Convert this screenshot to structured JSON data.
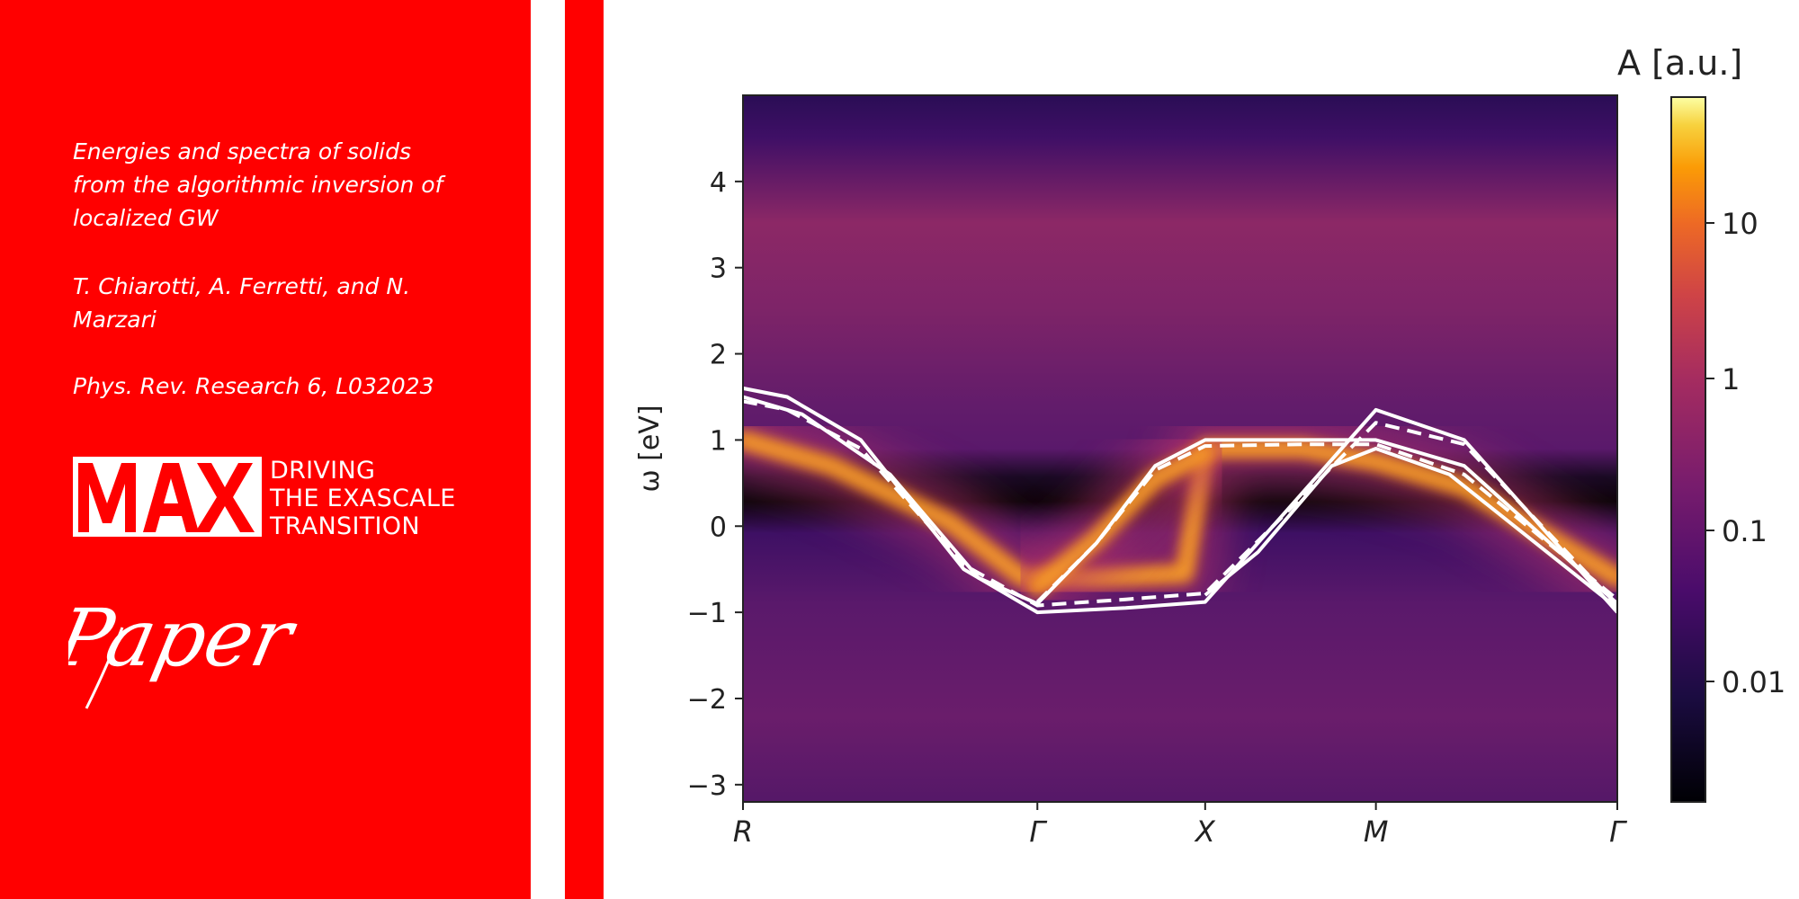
{
  "paper": {
    "title": "Energies and spectra of solids from the algorithmic inversion of localized GW",
    "authors": "T. Chiarotti, A. Ferretti, and N. Marzari",
    "journal": "Phys. Rev. Research 6, L032023"
  },
  "brand": {
    "logo_text": "MAX",
    "tagline_lines": [
      "DRIVING",
      "THE EXASCALE",
      "TRANSITION"
    ],
    "red": "#ff0000"
  },
  "tag_label": "Paper",
  "figure": {
    "ylabel": "ω [eV]",
    "colorbar_label": "A [a.u.]"
  },
  "chart_data": {
    "type": "heatmap",
    "title": "",
    "xlabel": "",
    "ylabel": "ω [eV]",
    "x_ticks": [
      {
        "label": "R",
        "pos": 0.0
      },
      {
        "label": "Γ",
        "pos": 1.0
      },
      {
        "label": "X",
        "pos": 1.57
      },
      {
        "label": "M",
        "pos": 2.15
      },
      {
        "label": "Γ",
        "pos": 2.97
      }
    ],
    "xlim": [
      0.0,
      2.97
    ],
    "y_ticks": [
      -3,
      -2,
      -1,
      0,
      1,
      2,
      3,
      4
    ],
    "ylim": [
      -3.2,
      5.0
    ],
    "colorbar": {
      "label": "A [a.u.]",
      "scale": "log",
      "ticks": [
        "0.01",
        "0.1",
        "1",
        "10"
      ],
      "colormap": "inferno"
    },
    "bands": [
      {
        "style": "solid",
        "x": [
          0.0,
          0.15,
          0.4,
          0.75,
          1.0,
          1.3,
          1.57,
          1.8,
          2.15,
          2.45,
          2.97
        ],
        "y": [
          1.6,
          1.5,
          1.0,
          -0.5,
          -1.0,
          -0.95,
          -0.88,
          0.0,
          1.35,
          1.0,
          -1.0
        ]
      },
      {
        "style": "dashed",
        "x": [
          0.0,
          0.15,
          0.4,
          0.75,
          1.0,
          1.3,
          1.57,
          1.8,
          2.15,
          2.45,
          2.97
        ],
        "y": [
          1.45,
          1.35,
          0.9,
          -0.45,
          -0.92,
          -0.85,
          -0.78,
          0.0,
          1.2,
          0.95,
          -0.92
        ]
      },
      {
        "style": "solid",
        "x": [
          0.0,
          0.2,
          0.5,
          0.8,
          1.0,
          1.2,
          1.4,
          1.57,
          1.9,
          2.15,
          2.45,
          2.97
        ],
        "y": [
          1.5,
          1.3,
          0.6,
          -0.6,
          -0.9,
          -0.2,
          0.7,
          1.0,
          1.0,
          1.0,
          0.7,
          -0.9
        ]
      },
      {
        "style": "dashed",
        "x": [
          1.0,
          1.2,
          1.4,
          1.57,
          1.9,
          2.15,
          2.45,
          2.97
        ],
        "y": [
          -0.88,
          -0.2,
          0.65,
          0.93,
          0.95,
          0.95,
          0.6,
          -0.85
        ]
      },
      {
        "style": "solid",
        "x": [
          1.57,
          1.75,
          2.0,
          2.15,
          2.4,
          2.97
        ],
        "y": [
          -0.8,
          -0.3,
          0.7,
          0.9,
          0.6,
          -0.95
        ]
      }
    ],
    "spectral_features": [
      {
        "x": [
          0.0,
          0.3,
          0.7,
          0.95,
          1.2,
          1.5,
          1.57,
          1.9,
          2.15,
          2.45,
          2.97
        ],
        "y": [
          1.0,
          0.7,
          0.05,
          -0.6,
          -0.6,
          -0.55,
          0.9,
          0.9,
          0.75,
          0.45,
          -0.6
        ]
      },
      {
        "x": [
          1.0,
          1.2,
          1.4,
          1.57
        ],
        "y": [
          -0.7,
          -0.15,
          0.55,
          0.85
        ]
      }
    ]
  }
}
